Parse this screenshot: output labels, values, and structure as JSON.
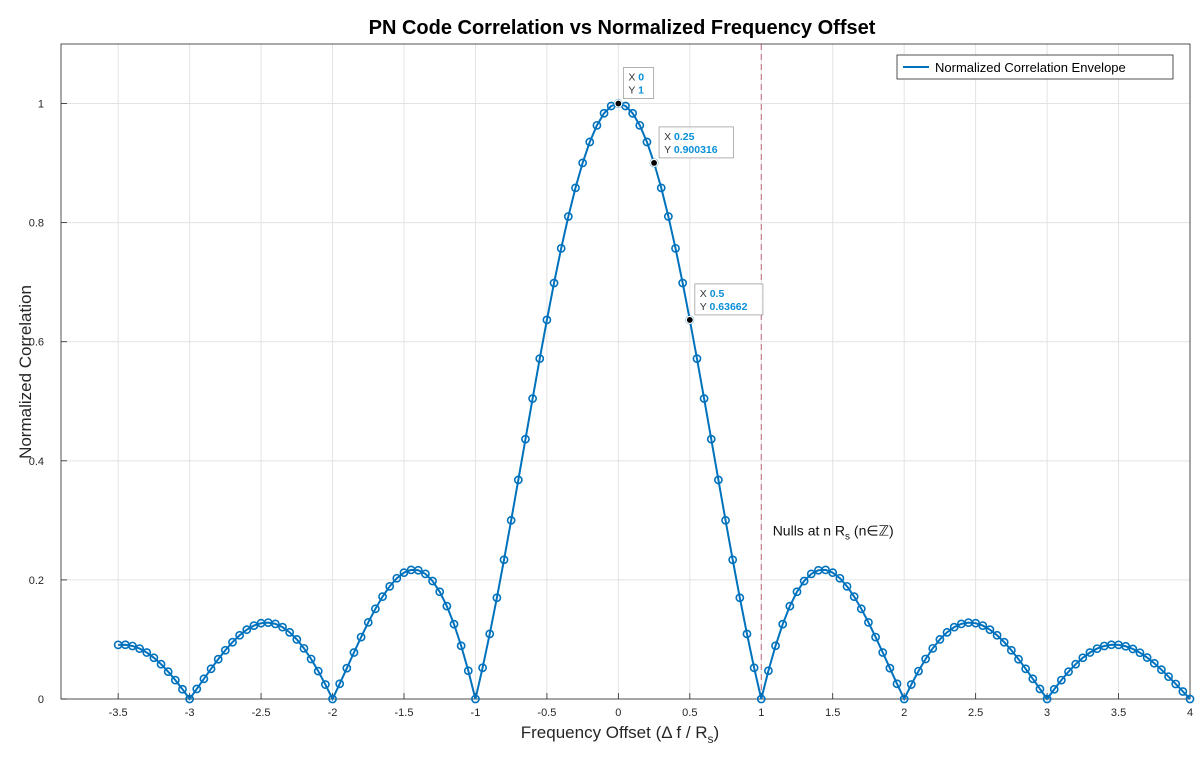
{
  "chart_data": {
    "type": "line",
    "title": "PN Code Correlation vs Normalized Frequency Offset",
    "xlabel": "Frequency Offset (Δ f / R",
    "xlabel_sub": "s",
    "xlabel_close": ")",
    "ylabel": "Normalized Correlation",
    "xlim": [
      -3.9,
      4.0
    ],
    "ylim": [
      0,
      1.1
    ],
    "x_ticks": [
      -3.5,
      -3,
      -2.5,
      -2,
      -1.5,
      -1,
      -0.5,
      0,
      0.5,
      1,
      1.5,
      2,
      2.5,
      3,
      3.5,
      4
    ],
    "x_tick_labels": [
      "-3.5",
      "-3",
      "-2.5",
      "-2",
      "-1.5",
      "-1",
      "-0.5",
      "0",
      "0.5",
      "1",
      "1.5",
      "2",
      "2.5",
      "3",
      "3.5",
      "4"
    ],
    "y_ticks": [
      0,
      0.2,
      0.4,
      0.6,
      0.8,
      1
    ],
    "y_tick_labels": [
      "0",
      "0.2",
      "0.4",
      "0.6",
      "0.8",
      "1"
    ],
    "grid": true,
    "legend_position": "top-right",
    "series": [
      {
        "name": "Normalized Correlation Envelope",
        "color": "#0072BD",
        "function": "abs(sinc(x))",
        "x_start": -3.5,
        "x_end": 4.0,
        "x_step": 0.05
      }
    ],
    "vline": {
      "x": 1,
      "color": "#A2142F",
      "style": "dashed"
    },
    "annotation": {
      "text": "Nulls at n R",
      "sub": "s",
      "suffix": " (n∈ℤ)",
      "x": 1.08,
      "y": 0.275
    },
    "datatips": [
      {
        "x": 0,
        "y": 1,
        "x_label": "X",
        "y_label": "Y",
        "x_text": "0",
        "y_text": "1"
      },
      {
        "x": 0.25,
        "y": 0.900316,
        "x_label": "X",
        "y_label": "Y",
        "x_text": "0.25",
        "y_text": "0.900316"
      },
      {
        "x": 0.5,
        "y": 0.63662,
        "x_label": "X",
        "y_label": "Y",
        "x_text": "0.5",
        "y_text": "0.63662"
      }
    ]
  }
}
